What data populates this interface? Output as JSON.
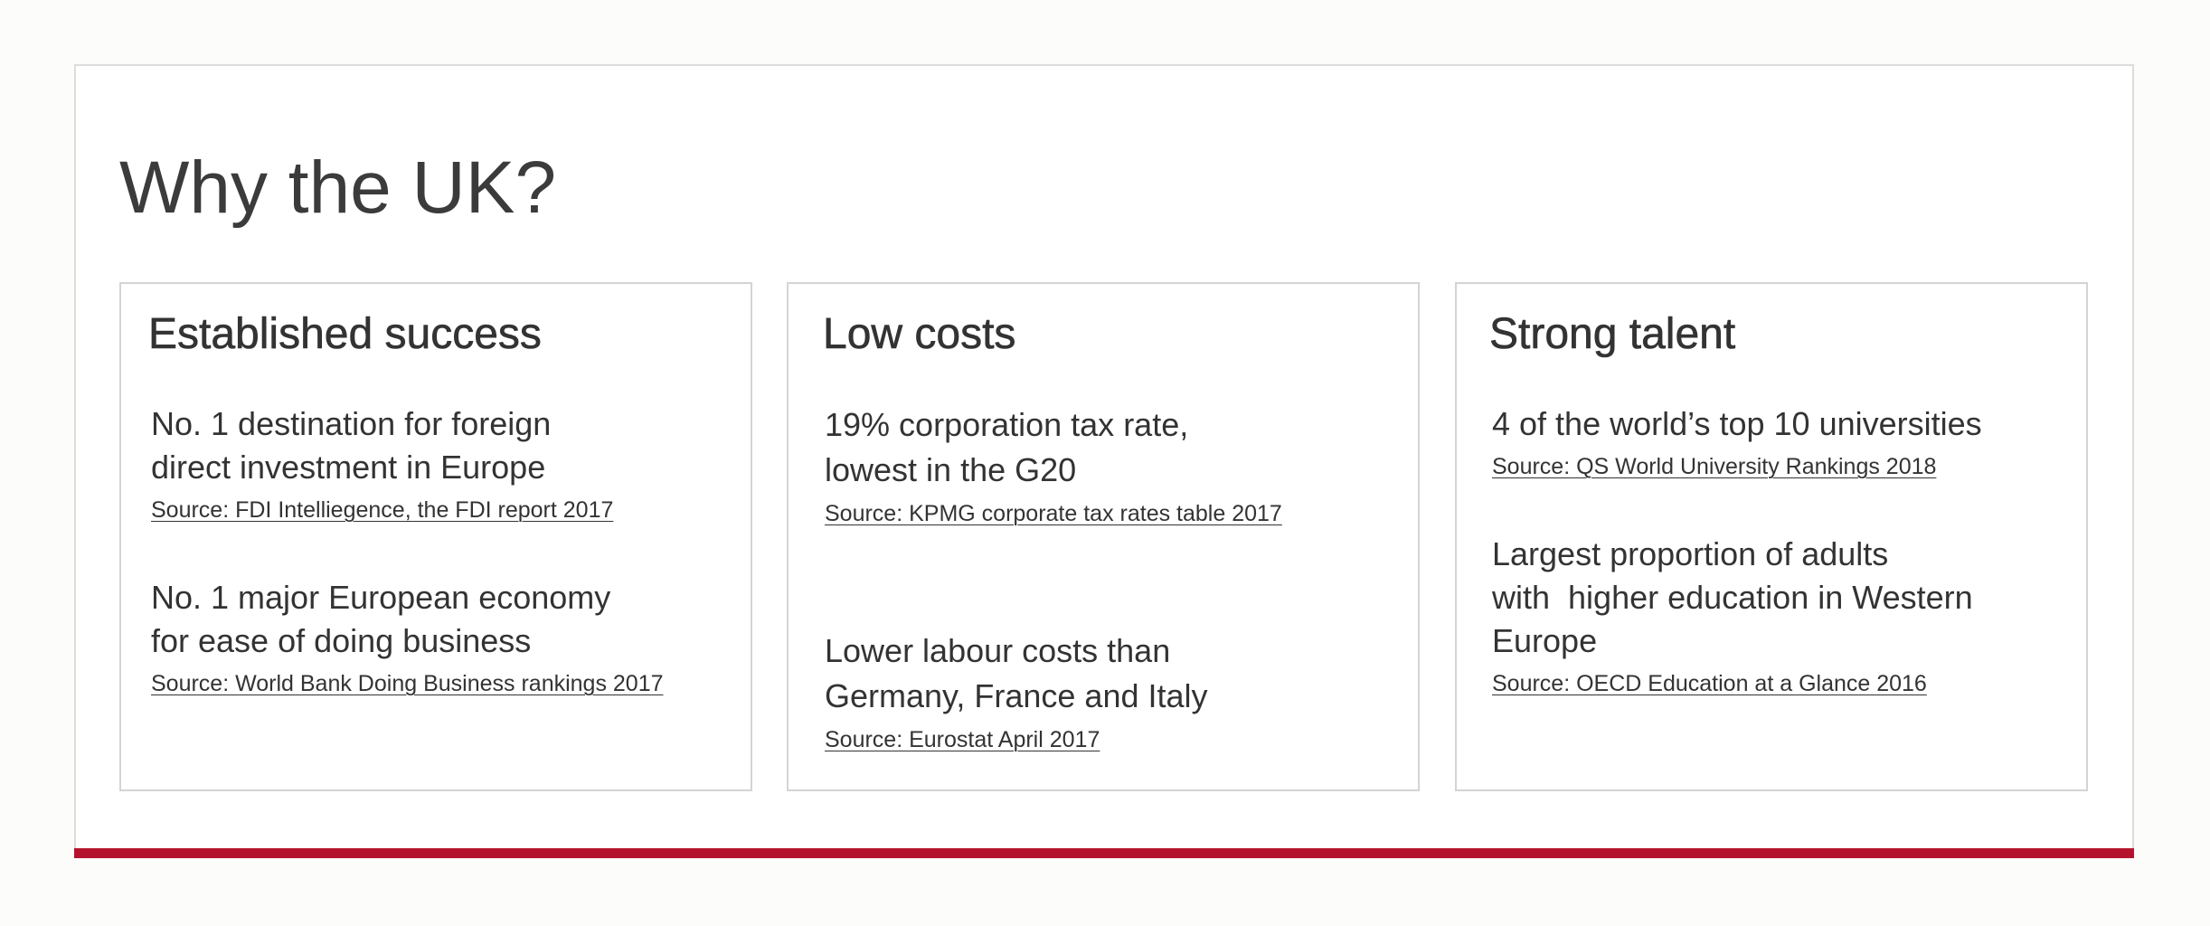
{
  "page": {
    "title": "Why the UK?",
    "accent_color": "#b5132d"
  },
  "cards": [
    {
      "title": "Established success",
      "facts": [
        {
          "lines": [
            "No. 1 destination for foreign",
            "direct investment in Europe"
          ],
          "source": "Source: FDI Intelliegence, the FDI report 2017"
        },
        {
          "lines": [
            "No. 1 major European economy",
            "for ease of doing business"
          ],
          "source": "Source: World Bank Doing Business rankings 2017"
        }
      ]
    },
    {
      "title": "Low costs",
      "facts": [
        {
          "lines": [
            "19% corporation tax rate,",
            "lowest in the G20"
          ],
          "source": "Source: KPMG corporate tax rates table 2017"
        },
        {
          "lines": [
            "Lower labour costs than",
            "Germany, France and Italy"
          ],
          "source": "Source: Eurostat April 2017"
        }
      ]
    },
    {
      "title": "Strong talent",
      "facts": [
        {
          "lines": [
            "4 of the world’s top 10 universities"
          ],
          "source": "Source: QS World University Rankings 2018"
        },
        {
          "lines": [
            "Largest proportion of adults",
            "with  higher education in Western",
            "Europe"
          ],
          "source": "Source: OECD Education at a Glance 2016"
        }
      ]
    }
  ]
}
